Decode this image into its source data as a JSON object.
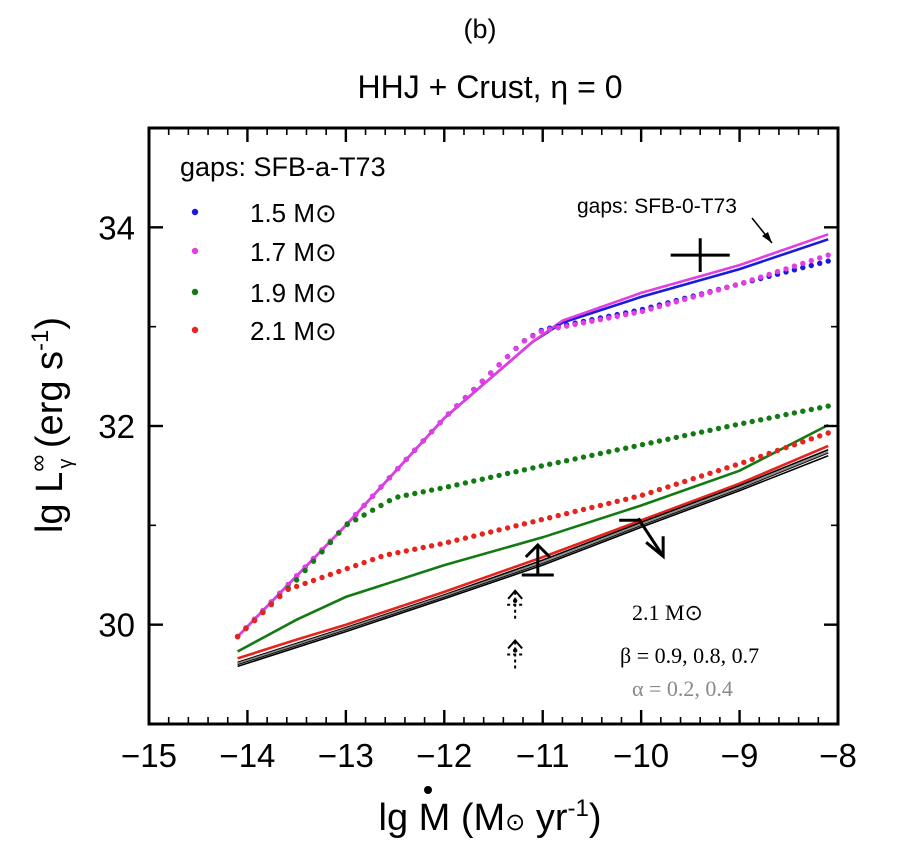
{
  "chart_data": {
    "type": "line",
    "panel_label": "(b)",
    "title": "HHJ + Crust, η = 0",
    "xlabel": "lg Ṁ (M⊙ yr⁻¹)",
    "xlabel_parts": {
      "pre": "lg M",
      "mid": " (M",
      "sun": "⊙",
      "unit": " yr",
      "exp": "-1",
      "post": ")"
    },
    "ylabel": "lg L∞γ (erg s⁻¹)",
    "ylabel_parts": {
      "pre": "lg L",
      "sup": "∞",
      "sub": "γ",
      "unit": " (erg s",
      "exp": "-1",
      "post": ")"
    },
    "xlim": [
      -15,
      -8
    ],
    "ylim": [
      29,
      35
    ],
    "x_ticks": [
      -15,
      -14,
      -13,
      -12,
      -11,
      -10,
      -9,
      -8
    ],
    "x_tick_labels": [
      "−15",
      "−14",
      "−13",
      "−12",
      "−11",
      "−10",
      "−9",
      "−8"
    ],
    "y_ticks": [
      30,
      32,
      34
    ],
    "y_tick_labels": [
      "30",
      "32",
      "34"
    ],
    "grid": false,
    "legend": {
      "title": "gaps: SFB-a-T73",
      "placement": "top-left",
      "entries": [
        {
          "label": "1.5 M⊙",
          "color": "#1a1adf"
        },
        {
          "label": "1.7 M⊙",
          "color": "#e23ee2"
        },
        {
          "label": "1.9 M⊙",
          "color": "#127a12"
        },
        {
          "label": "2.1 M⊙",
          "color": "#e6231c"
        }
      ]
    },
    "annotation_solid": "gaps: SFB-0-T73",
    "annotation_box": [
      {
        "text": "2.1 M⊙",
        "color": "#000000"
      },
      {
        "text": "β = 0.9, 0.8, 0.7",
        "color": "#000000"
      },
      {
        "text": "α = 0.2, 0.4",
        "color": "#8a8a8a"
      }
    ],
    "dotted_series": [
      {
        "name": "1.5 M⊙",
        "color": "#1a1adf",
        "x": [
          -14.1,
          -13,
          -12,
          -11.2,
          -11,
          -10,
          -9,
          -8.1
        ],
        "y": [
          29.88,
          31.0,
          32.08,
          32.85,
          32.97,
          33.17,
          33.43,
          33.66
        ]
      },
      {
        "name": "1.7 M⊙",
        "color": "#e23ee2",
        "x": [
          -14.1,
          -13,
          -12,
          -11.2,
          -11,
          -10,
          -9,
          -8.1
        ],
        "y": [
          29.88,
          31.0,
          32.08,
          32.85,
          32.96,
          33.15,
          33.43,
          33.72
        ]
      },
      {
        "name": "1.9 M⊙",
        "color": "#127a12",
        "x": [
          -14.1,
          -13.5,
          -13,
          -12.5,
          -12,
          -11,
          -10,
          -9,
          -8.1
        ],
        "y": [
          29.88,
          30.45,
          31.0,
          31.28,
          31.38,
          31.6,
          31.81,
          32.02,
          32.2
        ]
      },
      {
        "name": "2.1 M⊙",
        "color": "#e6231c",
        "x": [
          -14.1,
          -13.6,
          -13,
          -12.6,
          -12,
          -11,
          -10,
          -9,
          -8.1
        ],
        "y": [
          29.88,
          30.35,
          30.56,
          30.7,
          30.82,
          31.06,
          31.3,
          31.62,
          31.93
        ]
      }
    ],
    "solid_series": [
      {
        "name": "1.5 M⊙",
        "color": "#1a1adf",
        "x": [
          -14.1,
          -13,
          -12,
          -11.1,
          -10.8,
          -10,
          -9,
          -8.1
        ],
        "y": [
          29.88,
          31.0,
          32.08,
          32.85,
          33.04,
          33.3,
          33.58,
          33.88
        ]
      },
      {
        "name": "1.7 M⊙",
        "color": "#e23ee2",
        "x": [
          -14.1,
          -13,
          -12,
          -11.1,
          -10.8,
          -10,
          -9,
          -8.1
        ],
        "y": [
          29.88,
          31.0,
          32.08,
          32.85,
          33.06,
          33.34,
          33.62,
          33.93
        ]
      },
      {
        "name": "1.9 M⊙",
        "color": "#127a12",
        "x": [
          -14.1,
          -13.5,
          -13,
          -12,
          -11,
          -10,
          -9,
          -8.1
        ],
        "y": [
          29.73,
          30.05,
          30.28,
          30.6,
          30.88,
          31.2,
          31.55,
          32.01
        ]
      },
      {
        "name": "2.1 M⊙",
        "color": "#e6231c",
        "x": [
          -14.1,
          -13.5,
          -13,
          -12,
          -11,
          -10,
          -9,
          -8.1
        ],
        "y": [
          29.66,
          29.85,
          30.0,
          30.33,
          30.68,
          31.05,
          31.42,
          31.8
        ]
      },
      {
        "name": "β = 0.9",
        "color": "#000000",
        "x": [
          -14.1,
          -13,
          -12,
          -11,
          -10,
          -9,
          -8.1
        ],
        "y": [
          29.62,
          29.97,
          30.3,
          30.65,
          31.03,
          31.4,
          31.76
        ]
      },
      {
        "name": "β = 0.8",
        "color": "#000000",
        "x": [
          -14.1,
          -13,
          -12,
          -11,
          -10,
          -9,
          -8.1
        ],
        "y": [
          29.6,
          29.95,
          30.28,
          30.62,
          31.0,
          31.37,
          31.73
        ]
      },
      {
        "name": "β = 0.7",
        "color": "#000000",
        "x": [
          -14.1,
          -13,
          -12,
          -11,
          -10,
          -9,
          -8.1
        ],
        "y": [
          29.58,
          29.93,
          30.26,
          30.6,
          30.98,
          31.35,
          31.7
        ]
      },
      {
        "name": "α = 0.2",
        "color": "#8a8a8a",
        "x": [
          -14.1,
          -13,
          -12,
          -11,
          -10,
          -9,
          -8.1
        ],
        "y": [
          29.61,
          29.96,
          30.29,
          30.63,
          31.01,
          31.38,
          31.74
        ]
      }
    ],
    "observations": [
      {
        "type": "cross",
        "x": -9.4,
        "y": 33.72,
        "dx": 0.3,
        "dy": 0.17
      },
      {
        "type": "lower_limit",
        "x": -11.05,
        "y": 30.5
      },
      {
        "type": "upper_limit",
        "x": -10.0,
        "y": 30.95
      },
      {
        "type": "dashed_lower_limit",
        "x": -11.28,
        "y": 30.2
      },
      {
        "type": "dashed_lower_limit",
        "x": -11.28,
        "y": 29.7
      }
    ]
  }
}
